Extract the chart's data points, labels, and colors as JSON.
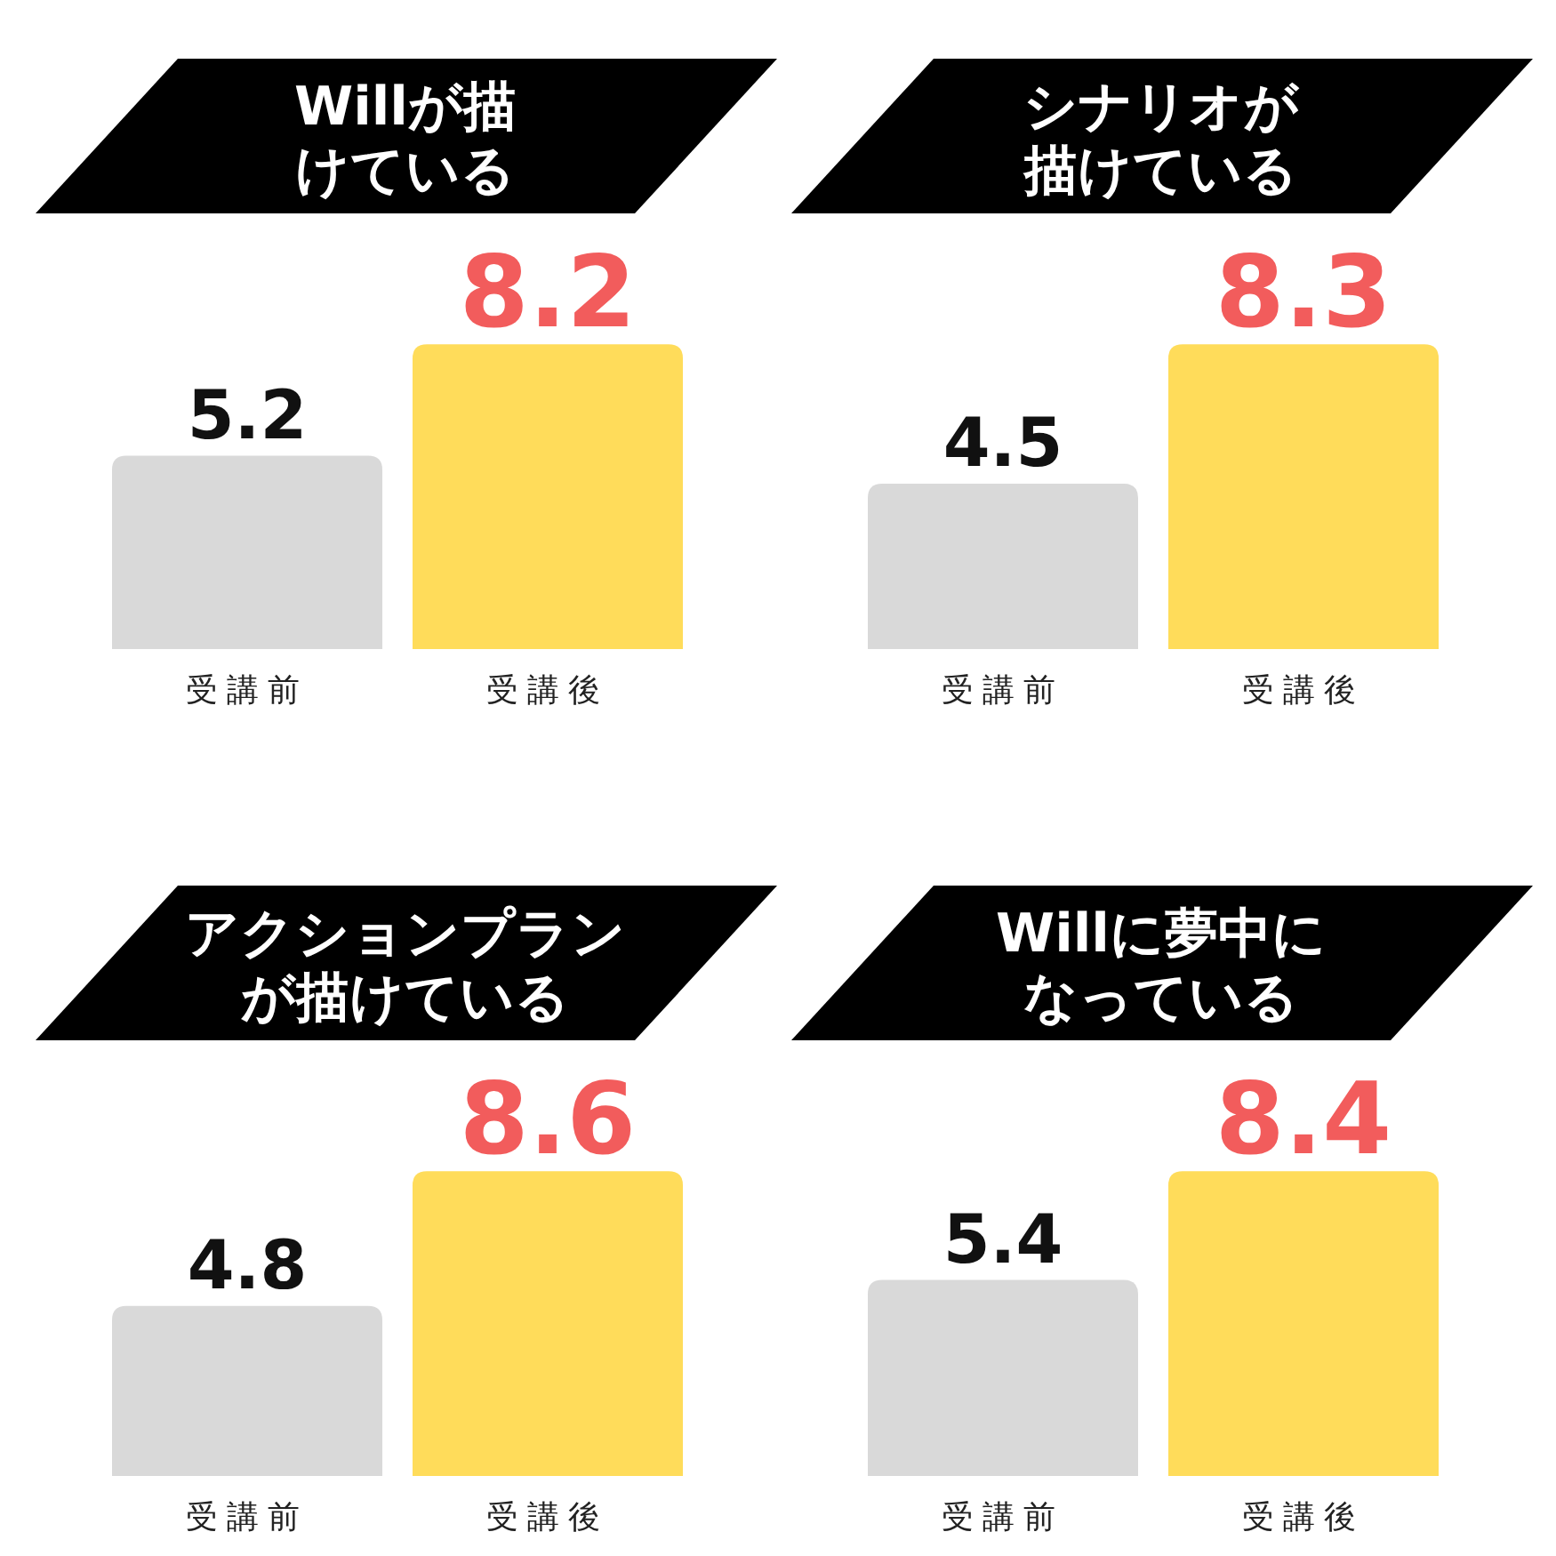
{
  "chart_data": [
    {
      "type": "bar",
      "title": "Willが描けている",
      "categories": [
        "受講前",
        "受講後"
      ],
      "values": [
        5.2,
        8.2
      ],
      "colors": [
        "#d9d9d9",
        "#ffdc5a"
      ],
      "data_labels": true,
      "relative": false
    },
    {
      "type": "bar",
      "title": "シナリオが描けている",
      "categories": [
        "受講前",
        "受講後"
      ],
      "values": [
        4.5,
        8.3
      ],
      "colors": [
        "#d9d9d9",
        "#ffdc5a"
      ],
      "data_labels": true,
      "relative": false
    },
    {
      "type": "bar",
      "title": "アクションプランが描けている",
      "categories": [
        "受講前",
        "受講後"
      ],
      "values": [
        4.8,
        8.6
      ],
      "colors": [
        "#d9d9d9",
        "#ffdc5a"
      ],
      "data_labels": true,
      "relative": false
    },
    {
      "type": "bar",
      "title": "Willに夢中になっている",
      "categories": [
        "受講前",
        "受講後"
      ],
      "values": [
        5.4,
        8.4
      ],
      "colors": [
        "#d9d9d9",
        "#ffdc5a"
      ],
      "data_labels": true,
      "relative": false
    }
  ]
}
